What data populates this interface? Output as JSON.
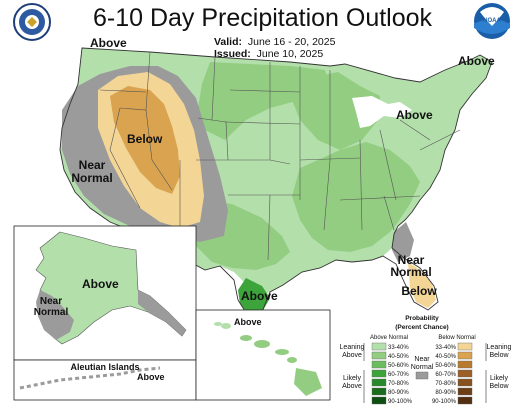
{
  "title": "6-10 Day Precipitation Outlook",
  "valid": {
    "label": "Valid:",
    "value": "June 16 - 20, 2025"
  },
  "issued": {
    "label": "Issued:",
    "value": "June 10, 2025"
  },
  "logos": {
    "left": "doc-seal",
    "right": "noaa-logo",
    "right_text": "NOAA"
  },
  "map_labels": {
    "above_nw": "Above",
    "above_ne": "Above",
    "above_east": "Above",
    "below_west": "Below",
    "near_normal_west_1": "Near",
    "near_normal_west_2": "Normal",
    "above_texas": "Above",
    "near_normal_fl_1": "Near",
    "near_normal_fl_2": "Normal",
    "below_fl": "Below",
    "above_alaska": "Above",
    "near_normal_ak_1": "Near",
    "near_normal_ak_2": "Normal",
    "aleutian": "Aleutian Islands",
    "above_aleutian": "Above",
    "above_hawaii": "Above"
  },
  "legend": {
    "title_1": "Probability",
    "title_2": "(Percent Chance)",
    "above_header": "Above Normal",
    "below_header": "Below Normal",
    "near_1": "Near",
    "near_2": "Normal",
    "leaning_above_1": "Leaning",
    "leaning_above_2": "Above",
    "likely_above_1": "Likely",
    "likely_above_2": "Above",
    "leaning_below_1": "Leaning",
    "leaning_below_2": "Below",
    "likely_below_1": "Likely",
    "likely_below_2": "Below",
    "above_classes": [
      {
        "label": "33-40%",
        "color": "#b3dfab"
      },
      {
        "label": "40-50%",
        "color": "#93cd82"
      },
      {
        "label": "50-60%",
        "color": "#6cbd5f"
      },
      {
        "label": "60-70%",
        "color": "#3ca43b"
      },
      {
        "label": "70-80%",
        "color": "#278a2a"
      },
      {
        "label": "80-90%",
        "color": "#196d1d"
      },
      {
        "label": "90-100%",
        "color": "#0d4e11"
      }
    ],
    "below_classes": [
      {
        "label": "33-40%",
        "color": "#f3d596"
      },
      {
        "label": "40-50%",
        "color": "#d9a350"
      },
      {
        "label": "50-60%",
        "color": "#b87a2e"
      },
      {
        "label": "60-70%",
        "color": "#9b5f27"
      },
      {
        "label": "70-80%",
        "color": "#86511e"
      },
      {
        "label": "80-90%",
        "color": "#6c3f16"
      },
      {
        "label": "90-100%",
        "color": "#512f10"
      }
    ],
    "near_color": "#9b9b9b"
  }
}
